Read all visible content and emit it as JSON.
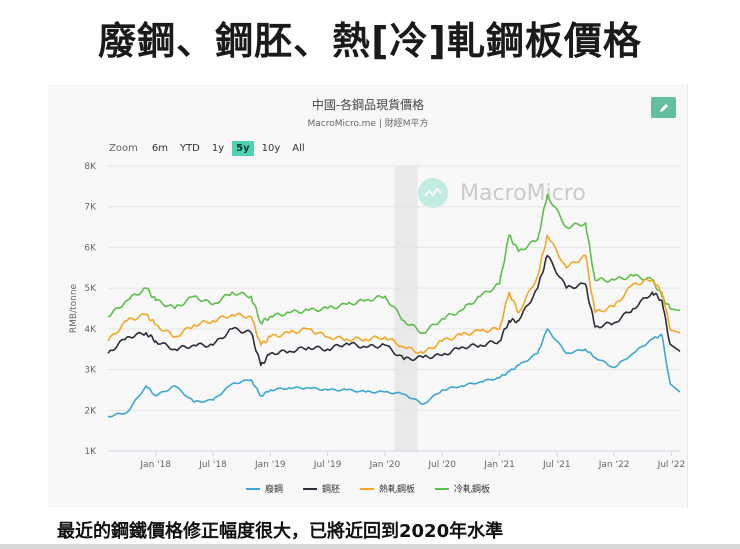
{
  "slide": {
    "title": "廢鋼、鋼胚、熱[冷]軋鋼板價格",
    "caption": "最近的鋼鐵價格修正幅度很大，已將近回到2020年水準"
  },
  "chart": {
    "title": "中國-各鋼品現貨價格",
    "subtitle": "MacroMicro.me | 財經M平方",
    "watermark": "MacroMicro",
    "zoom_label": "Zoom",
    "zoom_options": [
      "6m",
      "YTD",
      "1y",
      "5y",
      "10y",
      "All"
    ],
    "zoom_active": "5y",
    "edit_icon": "pencil-icon"
  },
  "chart_data": {
    "type": "line",
    "title": "中國-各鋼品現貨價格",
    "subtitle": "MacroMicro.me | 財經M平方",
    "xlabel": "",
    "ylabel": "RMB/tonne",
    "ylim": [
      1000,
      8000
    ],
    "yticks": [
      "1K",
      "2K",
      "3K",
      "4K",
      "5K",
      "6K",
      "7K",
      "8K"
    ],
    "xticks": [
      "Jan '18",
      "Jul '18",
      "Jan '19",
      "Jul '19",
      "Jan '20",
      "Jul '20",
      "Jan '21",
      "Jul '21",
      "Jan '22",
      "Jul '22"
    ],
    "grid": true,
    "legend_position": "bottom",
    "shaded_range": [
      "Feb 2020",
      "Apr 2020"
    ],
    "x": [
      "2017-08",
      "2017-10",
      "2017-12",
      "2018-01",
      "2018-03",
      "2018-05",
      "2018-07",
      "2018-09",
      "2018-11",
      "2018-12",
      "2019-01",
      "2019-03",
      "2019-05",
      "2019-07",
      "2019-09",
      "2019-11",
      "2020-01",
      "2020-03",
      "2020-05",
      "2020-07",
      "2020-09",
      "2020-11",
      "2021-01",
      "2021-02",
      "2021-03",
      "2021-05",
      "2021-06",
      "2021-08",
      "2021-10",
      "2021-11",
      "2022-01",
      "2022-03",
      "2022-05",
      "2022-06",
      "2022-07"
    ],
    "series": [
      {
        "name": "廢鋼",
        "color": "#3ba7d3",
        "values": [
          1850,
          1950,
          2600,
          2350,
          2600,
          2200,
          2250,
          2650,
          2750,
          2350,
          2500,
          2550,
          2550,
          2500,
          2500,
          2450,
          2450,
          2400,
          2150,
          2500,
          2600,
          2700,
          2800,
          2950,
          3100,
          3400,
          4000,
          3400,
          3500,
          3300,
          3050,
          3400,
          3750,
          3850,
          2450
        ]
      },
      {
        "name": "鋼胚",
        "color": "#2d2d3a",
        "values": [
          3400,
          3800,
          3900,
          3700,
          3500,
          3600,
          3600,
          4000,
          3900,
          3100,
          3400,
          3450,
          3550,
          3500,
          3650,
          3550,
          3600,
          3250,
          3300,
          3350,
          3550,
          3600,
          3700,
          4200,
          4200,
          5000,
          5800,
          5000,
          5100,
          4050,
          4150,
          4500,
          4900,
          4700,
          3450
        ]
      },
      {
        "name": "熱軋鋼板",
        "color": "#f5a623",
        "values": [
          3700,
          4200,
          4350,
          4100,
          3800,
          4100,
          4200,
          4350,
          4300,
          3600,
          3800,
          3900,
          4000,
          3800,
          3750,
          3750,
          3800,
          3550,
          3400,
          3700,
          3850,
          3950,
          4000,
          4900,
          4400,
          5300,
          6300,
          5500,
          5800,
          4400,
          4550,
          5100,
          5200,
          4900,
          3900
        ]
      },
      {
        "name": "冷軋鋼板",
        "color": "#5cbf4b",
        "values": [
          4300,
          4700,
          5000,
          4700,
          4500,
          4800,
          4600,
          4900,
          4800,
          4150,
          4300,
          4400,
          4450,
          4500,
          4600,
          4700,
          4800,
          4200,
          3900,
          4250,
          4450,
          4800,
          5100,
          6300,
          5900,
          6200,
          7300,
          6500,
          6600,
          5200,
          5200,
          5300,
          5200,
          4800,
          4450
        ]
      }
    ]
  }
}
